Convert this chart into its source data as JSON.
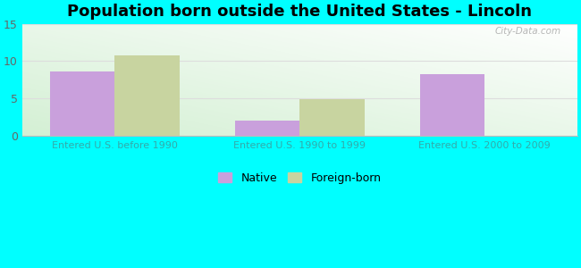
{
  "title": "Population born outside the United States - Lincoln",
  "categories": [
    "Entered U.S. before 1990",
    "Entered U.S. 1990 to 1999",
    "Entered U.S. 2000 to 2009"
  ],
  "native_values": [
    8.6,
    2.0,
    8.3
  ],
  "foreign_values": [
    10.8,
    4.9,
    0
  ],
  "show_foreign": [
    true,
    true,
    false
  ],
  "native_color": "#c9a0dc",
  "foreign_color": "#c8d4a0",
  "ylim": [
    0,
    15
  ],
  "yticks": [
    0,
    5,
    10,
    15
  ],
  "bar_width": 0.35,
  "background_color": "#00ffff",
  "title_fontsize": 13,
  "legend_native": "Native",
  "legend_foreign": "Foreign-born",
  "watermark": "City-Data.com",
  "tick_color": "#33aaaa",
  "ytick_color": "#666666"
}
